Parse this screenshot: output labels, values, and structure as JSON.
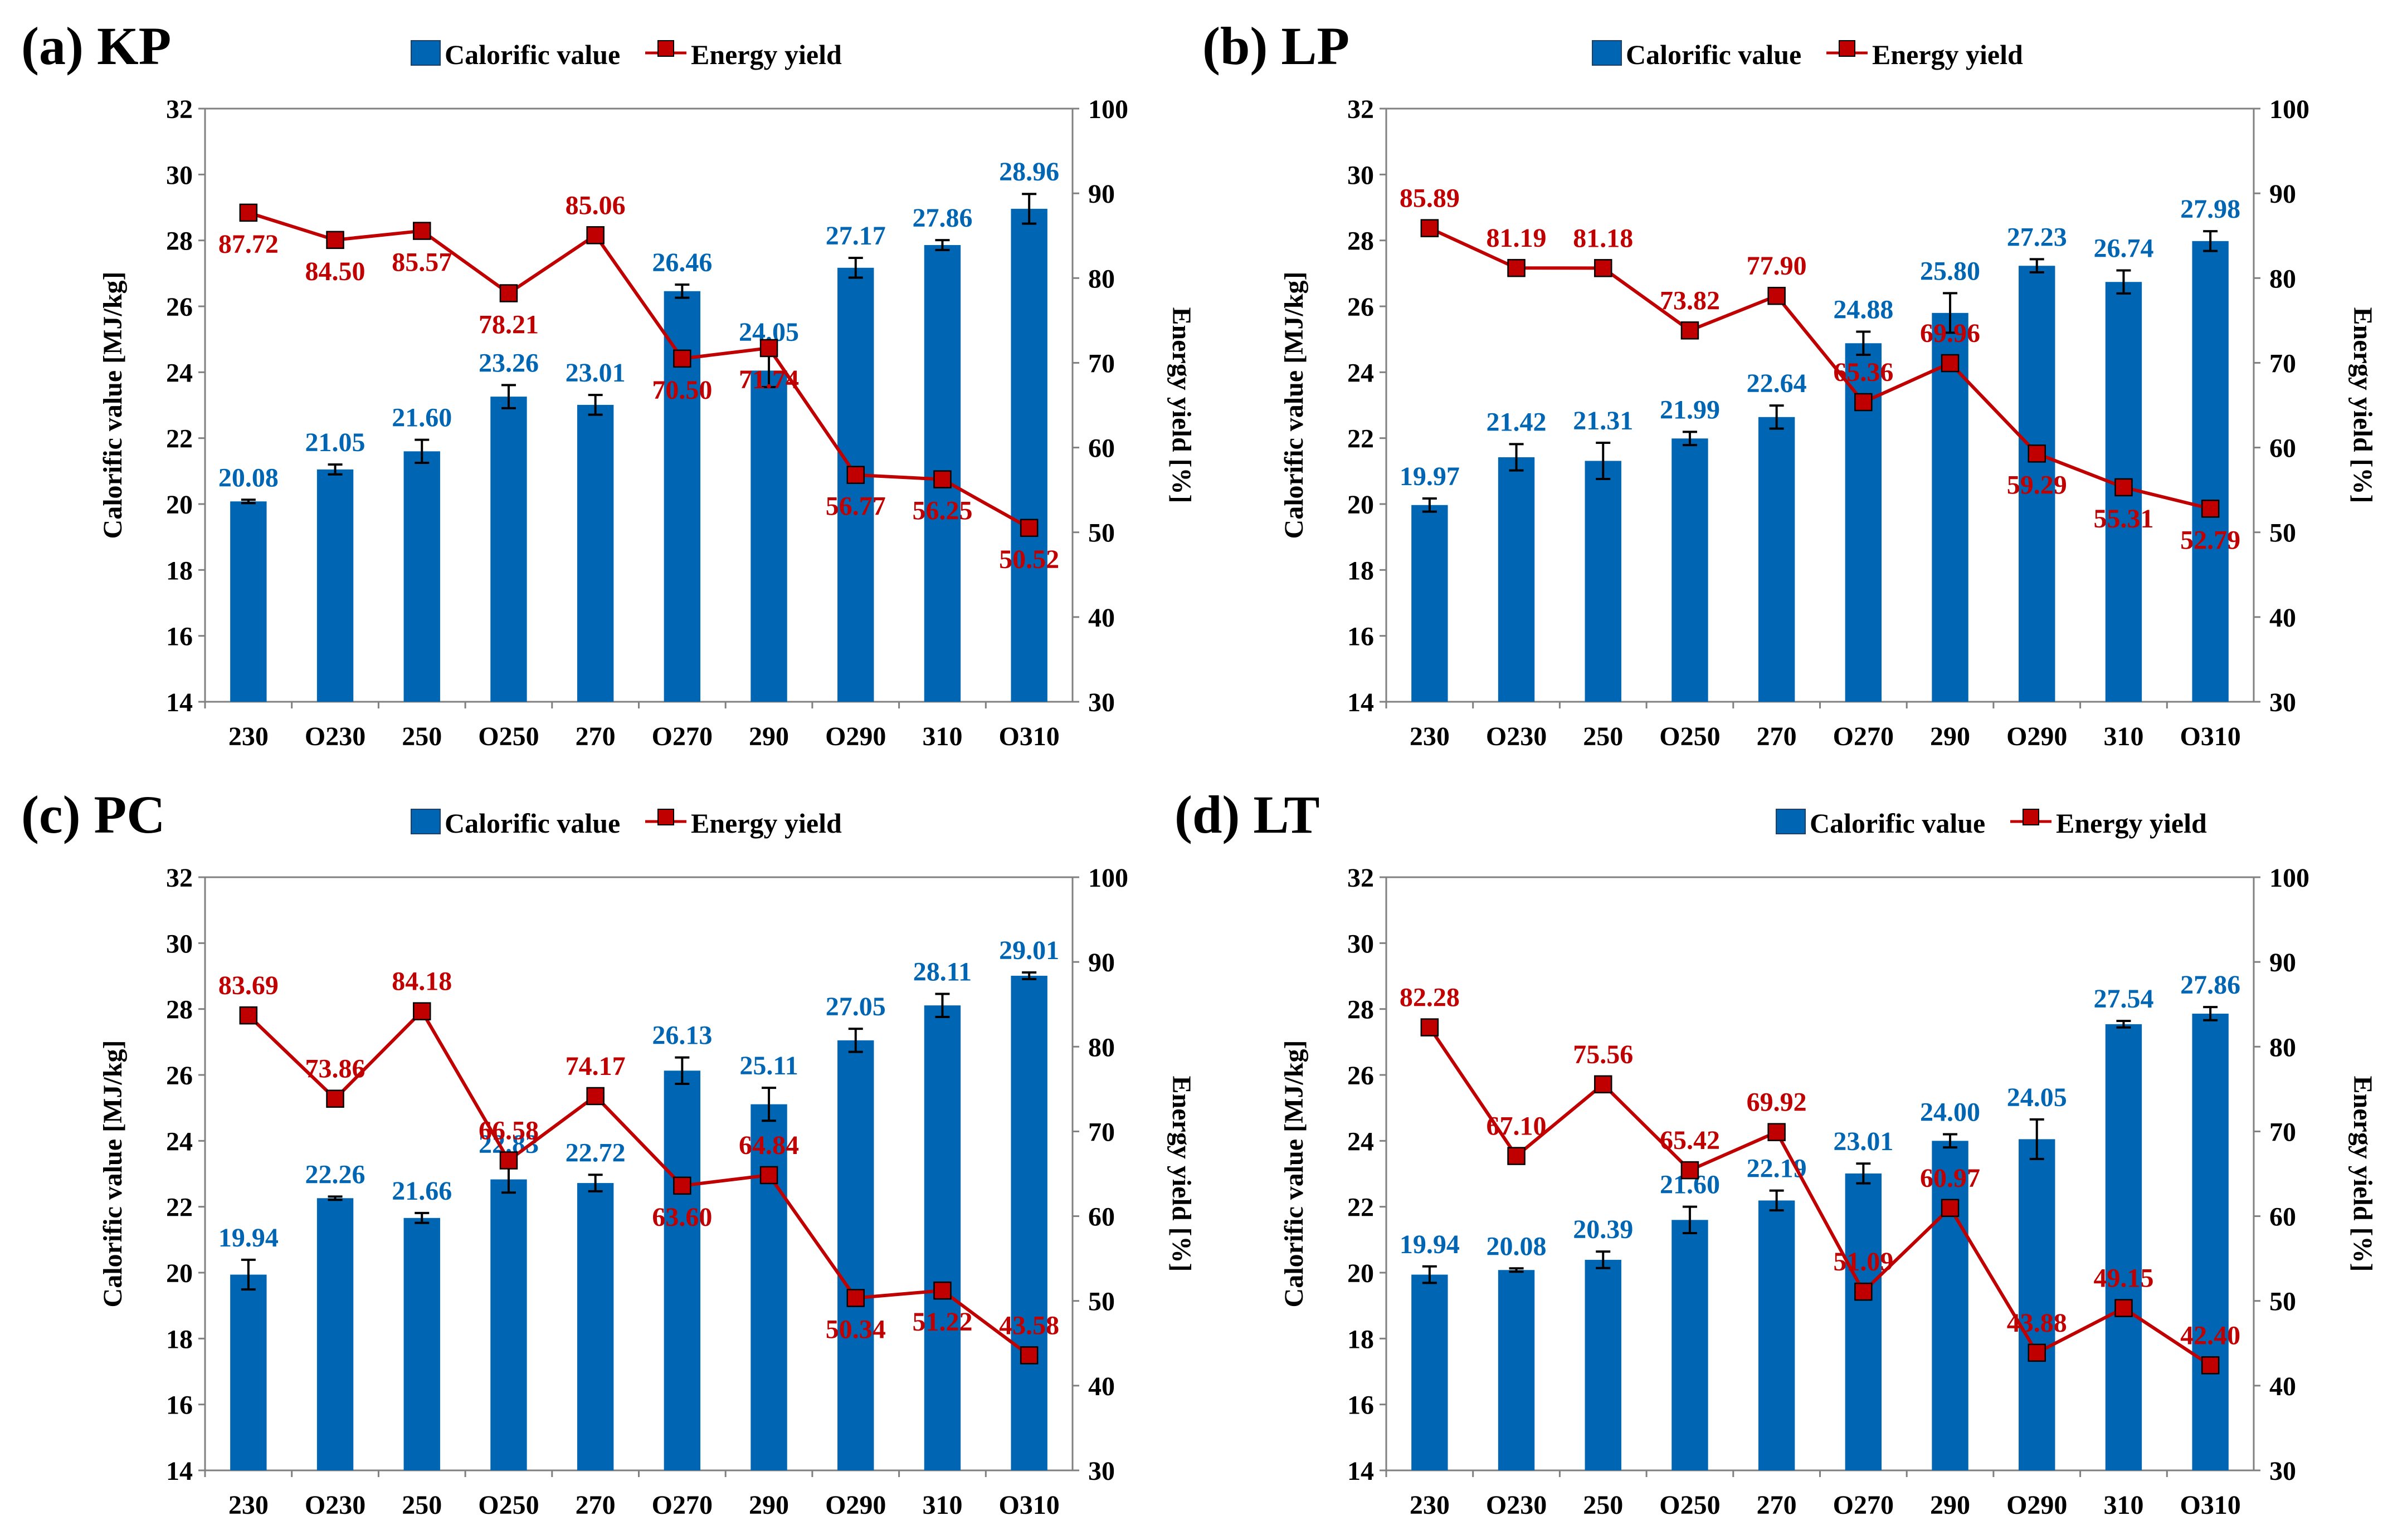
{
  "chart_data": [
    {
      "panel_label": "(a) KP",
      "type": "bar+line",
      "categories": [
        "230",
        "O230",
        "250",
        "O250",
        "270",
        "O270",
        "290",
        "O290",
        "310",
        "O310"
      ],
      "legend": [
        "Calorific value",
        "Energy yield"
      ],
      "ylabel": "Calorific value [MJ/kg]",
      "y2label": "Energy yield [%]",
      "ylim": [
        14,
        32
      ],
      "yticks": [
        "14",
        "16",
        "18",
        "20",
        "22",
        "24",
        "26",
        "28",
        "30",
        "32"
      ],
      "y2lim": [
        30,
        100
      ],
      "y2ticks": [
        "30",
        "40",
        "50",
        "60",
        "70",
        "80",
        "90",
        "100"
      ],
      "series": [
        {
          "name": "Calorific value",
          "kind": "bar",
          "color": "#0066B3",
          "values": [
            20.08,
            21.05,
            21.6,
            23.26,
            23.01,
            26.46,
            24.05,
            27.17,
            27.86,
            28.96
          ],
          "labels": [
            "20.08",
            "21.05",
            "21.60",
            "23.26",
            "23.01",
            "26.46",
            "24.05",
            "27.17",
            "27.86",
            "28.96"
          ],
          "errors": [
            0.05,
            0.15,
            0.35,
            0.35,
            0.3,
            0.2,
            0.5,
            0.3,
            0.15,
            0.45
          ]
        },
        {
          "name": "Energy yield",
          "kind": "line",
          "color": "#C00000",
          "values": [
            87.72,
            84.5,
            85.57,
            78.21,
            85.06,
            70.5,
            71.74,
            56.77,
            56.25,
            50.52
          ],
          "labels": [
            "87.72",
            "84.50",
            "85.57",
            "78.21",
            "85.06",
            "70.50",
            "71.74",
            "56.77",
            "56.25",
            "50.52"
          ]
        }
      ]
    },
    {
      "panel_label": "(b) LP",
      "type": "bar+line",
      "categories": [
        "230",
        "O230",
        "250",
        "O250",
        "270",
        "O270",
        "290",
        "O290",
        "310",
        "O310"
      ],
      "legend": [
        "Calorific value",
        "Energy yield"
      ],
      "ylabel": "Calorific value [MJ/kg]",
      "y2label": "Energy yield [%]",
      "ylim": [
        14,
        32
      ],
      "yticks": [
        "14",
        "16",
        "18",
        "20",
        "22",
        "24",
        "26",
        "28",
        "30",
        "32"
      ],
      "y2lim": [
        30,
        100
      ],
      "y2ticks": [
        "30",
        "40",
        "50",
        "60",
        "70",
        "80",
        "90",
        "100"
      ],
      "series": [
        {
          "name": "Calorific value",
          "kind": "bar",
          "color": "#0066B3",
          "values": [
            19.97,
            21.42,
            21.31,
            21.99,
            22.64,
            24.88,
            25.8,
            27.23,
            26.74,
            27.98
          ],
          "labels": [
            "19.97",
            "21.42",
            "21.31",
            "21.99",
            "22.64",
            "24.88",
            "25.80",
            "27.23",
            "26.74",
            "27.98"
          ],
          "errors": [
            0.2,
            0.4,
            0.55,
            0.2,
            0.35,
            0.35,
            0.6,
            0.2,
            0.35,
            0.3
          ]
        },
        {
          "name": "Energy yield",
          "kind": "line",
          "color": "#C00000",
          "values": [
            85.89,
            81.19,
            81.18,
            73.82,
            77.9,
            65.36,
            69.96,
            59.29,
            55.31,
            52.79
          ],
          "labels": [
            "85.89",
            "81.19",
            "81.18",
            "73.82",
            "77.90",
            "65.36",
            "69.96",
            "59.29",
            "55.31",
            "52.79"
          ]
        }
      ]
    },
    {
      "panel_label": "(c) PC",
      "type": "bar+line",
      "categories": [
        "230",
        "O230",
        "250",
        "O250",
        "270",
        "O270",
        "290",
        "O290",
        "310",
        "O310"
      ],
      "legend": [
        "Calorific value",
        "Energy yield"
      ],
      "ylabel": "Calorific value [MJ/kg]",
      "y2label": "Energy yield [%]",
      "ylim": [
        14,
        32
      ],
      "yticks": [
        "14",
        "16",
        "18",
        "20",
        "22",
        "24",
        "26",
        "28",
        "30",
        "32"
      ],
      "y2lim": [
        30,
        100
      ],
      "y2ticks": [
        "30",
        "40",
        "50",
        "60",
        "70",
        "80",
        "90",
        "100"
      ],
      "series": [
        {
          "name": "Calorific value",
          "kind": "bar",
          "color": "#0066B3",
          "values": [
            19.94,
            22.26,
            21.66,
            22.83,
            22.72,
            26.13,
            25.11,
            27.05,
            28.11,
            29.01
          ],
          "labels": [
            "19.94",
            "22.26",
            "21.66",
            "22.83",
            "22.72",
            "26.13",
            "25.11",
            "27.05",
            "28.11",
            "29.01"
          ],
          "errors": [
            0.45,
            0.05,
            0.15,
            0.4,
            0.25,
            0.4,
            0.5,
            0.35,
            0.35,
            0.1
          ]
        },
        {
          "name": "Energy yield",
          "kind": "line",
          "color": "#C00000",
          "values": [
            83.69,
            73.86,
            84.18,
            66.58,
            74.17,
            63.6,
            64.84,
            50.34,
            51.22,
            43.58
          ],
          "labels": [
            "83.69",
            "73.86",
            "84.18",
            "66.58",
            "74.17",
            "63.60",
            "64.84",
            "50.34",
            "51.22",
            "43.58"
          ]
        }
      ]
    },
    {
      "panel_label": "(d) LT",
      "type": "bar+line",
      "categories": [
        "230",
        "O230",
        "250",
        "O250",
        "270",
        "O270",
        "290",
        "O290",
        "310",
        "O310"
      ],
      "legend": [
        "Calorific value",
        "Energy yield"
      ],
      "ylabel": "Calorific value [MJ/kg]",
      "y2label": "Energy yield [%]",
      "ylim": [
        14,
        32
      ],
      "yticks": [
        "14",
        "16",
        "18",
        "20",
        "22",
        "24",
        "26",
        "28",
        "30",
        "32"
      ],
      "y2lim": [
        30,
        100
      ],
      "y2ticks": [
        "30",
        "40",
        "50",
        "60",
        "70",
        "80",
        "90",
        "100"
      ],
      "series": [
        {
          "name": "Calorific value",
          "kind": "bar",
          "color": "#0066B3",
          "values": [
            19.94,
            20.08,
            20.39,
            21.6,
            22.19,
            23.01,
            24.0,
            24.05,
            27.54,
            27.86
          ],
          "labels": [
            "19.94",
            "20.08",
            "20.39",
            "21.60",
            "22.19",
            "23.01",
            "24.00",
            "24.05",
            "27.54",
            "27.86"
          ],
          "errors": [
            0.25,
            0.05,
            0.25,
            0.4,
            0.3,
            0.3,
            0.2,
            0.6,
            0.1,
            0.2
          ]
        },
        {
          "name": "Energy yield",
          "kind": "line",
          "color": "#C00000",
          "values": [
            82.28,
            67.1,
            75.56,
            65.42,
            69.92,
            51.09,
            60.97,
            43.88,
            49.15,
            42.4
          ],
          "labels": [
            "82.28",
            "67.10",
            "75.56",
            "65.42",
            "69.92",
            "51.09",
            "60.97",
            "43.88",
            "49.15",
            "42.40"
          ]
        }
      ]
    }
  ]
}
